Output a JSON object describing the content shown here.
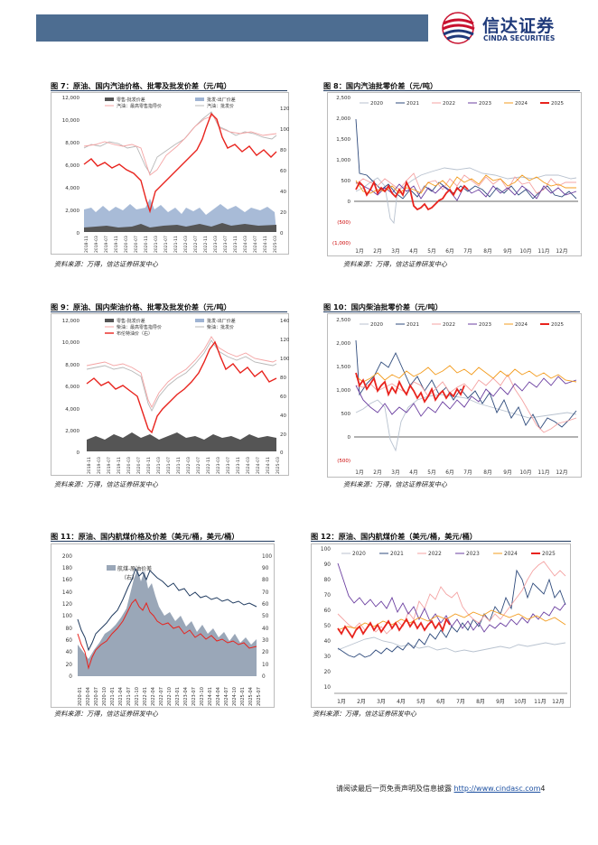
{
  "header": {
    "logo_cn": "信达证券",
    "logo_en": "CINDA SECURITIES"
  },
  "figures": [
    {
      "id": "f7",
      "title": "图 7：原油、国内汽油价格、批零及批发价差（元/吨）",
      "source": "资料来源：万得，信达证券研发中心"
    },
    {
      "id": "f8",
      "title": "图 8：国内汽油批零价差（元/吨）",
      "source": "资料来源：万得，信达证券研发中心"
    },
    {
      "id": "f9",
      "title": "图 9：原油、国内柴油价格、批零及批发价差（元/吨）",
      "source": "资料来源：万得，信达证券研发中心"
    },
    {
      "id": "f10",
      "title": "图 10：国内柴油批零价差（元/吨）",
      "source": "资料来源：万得，信达证券研发中心"
    },
    {
      "id": "f11",
      "title": "图 11：原油、国内航煤价格及价差（美元/桶，美元/桶）",
      "source": "资料来源：万得，信达证券研发中心"
    },
    {
      "id": "f12",
      "title": "图 12：原油、国内航煤价差（美元/桶，美元/桶）",
      "source": "资料来源：万得，信达证券研发中心"
    }
  ],
  "footer": {
    "text": "请阅读最后一页免责声明及信息披露",
    "link": "http://www.cindasc.com",
    "page": "4"
  },
  "chart_data": [
    {
      "id": "f7",
      "type": "line",
      "y_left_ticks": [
        "0",
        "2,000",
        "4,000",
        "6,000",
        "8,000",
        "10,000",
        "12,000"
      ],
      "y_right_ticks": [
        "0",
        "20",
        "40",
        "60",
        "80",
        "100",
        "120"
      ],
      "x_ticks": [
        "2018-11",
        "2019-03",
        "2019-07",
        "2019-11",
        "2020-03",
        "2020-07",
        "2020-11",
        "2021-03",
        "2021-07",
        "2021-11",
        "2022-03",
        "2022-07",
        "2022-11",
        "2023-03",
        "2023-07",
        "2023-11",
        "2024-03",
        "2024-07",
        "2024-11",
        "2025-03"
      ],
      "legend": [
        "零售-批发价差",
        "汽油：最高零售指导价",
        "批发-出厂价差",
        "汽油：批发价"
      ],
      "colors": {
        "retail_spread": "#555555",
        "retail_price": "#f4a3a3",
        "wholesale_spread": "#9fb4d3",
        "wholesale_price": "#b7b7b7",
        "crude": "#e8231d"
      }
    },
    {
      "id": "f8",
      "type": "line",
      "y_ticks": [
        "(1,000)",
        "(500)",
        "0",
        "500",
        "1,000",
        "1,500",
        "2,000",
        "2,500"
      ],
      "x_ticks": [
        "1月",
        "2月",
        "3月",
        "4月",
        "5月",
        "6月",
        "7月",
        "8月",
        "9月",
        "10月",
        "11月",
        "12月"
      ],
      "series": [
        {
          "name": "2020",
          "color": "#b8c2cf"
        },
        {
          "name": "2021",
          "color": "#2f4b7c"
        },
        {
          "name": "2022",
          "color": "#f4a3a3"
        },
        {
          "name": "2023",
          "color": "#6b3fa0"
        },
        {
          "name": "2024",
          "color": "#f39c1f"
        },
        {
          "name": "2025",
          "color": "#e8231d"
        }
      ]
    },
    {
      "id": "f9",
      "type": "line",
      "y_left_ticks": [
        "0",
        "2,000",
        "4,000",
        "6,000",
        "8,000",
        "10,000",
        "12,000"
      ],
      "y_right_ticks": [
        "0",
        "20",
        "40",
        "60",
        "80",
        "100",
        "120",
        "140"
      ],
      "x_ticks": [
        "2018-11",
        "2019-03",
        "2019-07",
        "2019-11",
        "2020-03",
        "2020-07",
        "2020-11",
        "2021-03",
        "2021-07",
        "2021-11",
        "2022-03",
        "2022-07",
        "2022-11",
        "2023-03",
        "2023-07",
        "2023-11",
        "2024-03",
        "2024-07",
        "2024-11",
        "2025-03"
      ],
      "legend": [
        "零售-批发价差",
        "柴油：最高零售指导价",
        "布伦特油价（右）",
        "批发-出厂价差",
        "柴油：批发价"
      ]
    },
    {
      "id": "f10",
      "type": "line",
      "y_ticks": [
        "(500)",
        "0",
        "500",
        "1,000",
        "1,500",
        "2,000",
        "2,500"
      ],
      "x_ticks": [
        "1月",
        "2月",
        "3月",
        "4月",
        "5月",
        "6月",
        "7月",
        "8月",
        "9月",
        "10月",
        "11月",
        "12月"
      ],
      "series": [
        {
          "name": "2020",
          "color": "#b8c2cf"
        },
        {
          "name": "2021",
          "color": "#2f4b7c"
        },
        {
          "name": "2022",
          "color": "#f4a3a3"
        },
        {
          "name": "2023",
          "color": "#6b3fa0"
        },
        {
          "name": "2024",
          "color": "#f39c1f"
        },
        {
          "name": "2025",
          "color": "#e8231d"
        }
      ]
    },
    {
      "id": "f11",
      "type": "area",
      "y_left_ticks": [
        "0",
        "20",
        "40",
        "60",
        "80",
        "100",
        "120",
        "140",
        "160",
        "180",
        "200"
      ],
      "y_right_ticks": [
        "0",
        "10",
        "20",
        "30",
        "40",
        "50",
        "60",
        "70",
        "80",
        "90",
        "100"
      ],
      "x_ticks": [
        "2020-01",
        "2020-04",
        "2020-07",
        "2020-10",
        "2021-01",
        "2021-04",
        "2021-07",
        "2021-10",
        "2022-01",
        "2022-04",
        "2022-07",
        "2022-10",
        "2023-01",
        "2023-04",
        "2023-07",
        "2023-10",
        "2024-01",
        "2024-04",
        "2024-07",
        "2024-10",
        "2025-01",
        "2025-04",
        "2025-07"
      ],
      "legend": [
        "航煤-原油价差",
        "（右）"
      ]
    },
    {
      "id": "f12",
      "type": "line",
      "y_ticks": [
        "10",
        "20",
        "30",
        "40",
        "50",
        "60",
        "70",
        "80",
        "90",
        "100"
      ],
      "x_ticks": [
        "1月",
        "2月",
        "3月",
        "4月",
        "5月",
        "6月",
        "7月",
        "8月",
        "9月",
        "10月",
        "11月",
        "12月"
      ],
      "series": [
        {
          "name": "2020",
          "color": "#b8c2cf"
        },
        {
          "name": "2021",
          "color": "#2f4b7c"
        },
        {
          "name": "2022",
          "color": "#f4a3a3"
        },
        {
          "name": "2023",
          "color": "#6b3fa0"
        },
        {
          "name": "2024",
          "color": "#f39c1f"
        },
        {
          "name": "2025",
          "color": "#e8231d"
        }
      ]
    }
  ]
}
